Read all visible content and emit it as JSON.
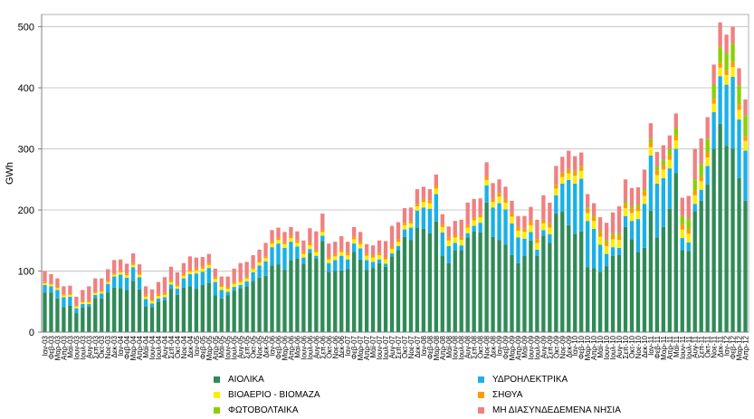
{
  "chart_data": {
    "type": "bar",
    "stacked": true,
    "title": "",
    "xlabel": "",
    "ylabel": "GWh",
    "ylim": [
      0,
      520
    ],
    "yticks": [
      0,
      100,
      200,
      300,
      400,
      500
    ],
    "categories": [
      "Ιαν-03",
      "Φεβ-03",
      "Μαρ-03",
      "Απρ-03",
      "Μαϊ-03",
      "Ιουν-03",
      "Ιουλ-03",
      "Αυγ-03",
      "Σεπ-03",
      "Οκτ-03",
      "Νοε-03",
      "Δεκ-03",
      "Ιαν-04",
      "Φεβ-04",
      "Μαρ-04",
      "Απρ-04",
      "Μαϊ-04",
      "Ιουν-04",
      "Ιουλ-04",
      "Αυγ-04",
      "Σεπ-04",
      "Οκτ-04",
      "Νοε-04",
      "Δεκ-04",
      "Ιαν-05",
      "Φεβ-05",
      "Μαρ-05",
      "Απρ-05",
      "Μαϊ-05",
      "Ιουν-05",
      "Ιουλ-05",
      "Αυγ-05",
      "Σεπ-05",
      "Οκτ-05",
      "Νοε-05",
      "Δεκ-05",
      "Ιαν-06",
      "Φεβ-06",
      "Μαρ-06",
      "Απρ-06",
      "Μαϊ-06",
      "Ιουν-06",
      "Ιουλ-06",
      "Αυγ-06",
      "Σεπ-06",
      "Οκτ-06",
      "Νοε-06",
      "Δεκ-06",
      "Ιαν-07",
      "Φεβ-07",
      "Μαρ-07",
      "Απρ-07",
      "Μαϊ-07",
      "Ιουν-07",
      "Ιουλ-07",
      "Αυγ-07",
      "Σεπ-07",
      "Οκτ-07",
      "Νοε-07",
      "Δεκ-07",
      "Ιαν-08",
      "Φεβ-08",
      "Μαρ-08",
      "Απρ-08",
      "Μαϊ-08",
      "Ιουν-08",
      "Ιουλ-08",
      "Αυγ-08",
      "Σεπ-08",
      "Οκτ-08",
      "Νοε-08",
      "Δεκ-08",
      "Ιαν-09",
      "Φεβ-09",
      "Μαρ-09",
      "Απρ-09",
      "Μαϊ-09",
      "Ιουν-09",
      "Ιουλ-09",
      "Αυγ-09",
      "Σεπ-09",
      "Οκτ-09",
      "Νοε-09",
      "Δεκ-09",
      "Ιαν-10",
      "Φεβ-10",
      "Μαρ-10",
      "Απρ-10",
      "Μαϊ-10",
      "Ιουν-10",
      "Ιουλ-10",
      "Αυγ-10",
      "Σεπ-10",
      "Οκτ-10",
      "Νοε-10",
      "Δεκ-10",
      "Ιαν-11",
      "Φεβ-11",
      "Μαρ-11",
      "Απρ-11",
      "Μαϊ-11",
      "Ιουν-11",
      "Ιουλ-11",
      "Αυγ-11",
      "Σεπ-11",
      "Οκτ-11",
      "Νοε-11",
      "Δεκ-11",
      "Ιαν-12",
      "Φεβ-12",
      "Μαρ-12",
      "Απρ-12"
    ],
    "series": [
      {
        "name": "ΑΙΟΛΙΚΑ",
        "color": "#2e8b57",
        "values": [
          65,
          65,
          55,
          41,
          43,
          31,
          40,
          42,
          56,
          55,
          65,
          73,
          72,
          69,
          84,
          70,
          42,
          41,
          50,
          52,
          71,
          61,
          73,
          75,
          71,
          77,
          80,
          60,
          55,
          60,
          68,
          72,
          75,
          84,
          89,
          92,
          109,
          111,
          102,
          118,
          120,
          112,
          130,
          120,
          149,
          99,
          100,
          101,
          103,
          131,
          119,
          102,
          105,
          113,
          107,
          124,
          134,
          156,
          151,
          171,
          169,
          162,
          181,
          125,
          113,
          134,
          134,
          155,
          165,
          163,
          212,
          156,
          151,
          143,
          126,
          113,
          125,
          150,
          125,
          158,
          146,
          194,
          197,
          175,
          161,
          165,
          106,
          105,
          99,
          108,
          125,
          126,
          172,
          152,
          131,
          138,
          199,
          155,
          172,
          202,
          260,
          134,
          133,
          198,
          215,
          242,
          300,
          341,
          305,
          300,
          252,
          215
        ]
      },
      {
        "name": "ΥΔΡΟΗΛΕΚΤΡΙΚΑ",
        "color": "#1ab0e8",
        "values": [
          12,
          10,
          14,
          16,
          15,
          8,
          6,
          4,
          5,
          8,
          14,
          18,
          22,
          20,
          22,
          20,
          12,
          6,
          5,
          5,
          7,
          10,
          15,
          20,
          25,
          22,
          25,
          22,
          14,
          6,
          6,
          5,
          8,
          14,
          20,
          24,
          30,
          34,
          36,
          30,
          20,
          10,
          6,
          5,
          9,
          14,
          18,
          24,
          16,
          14,
          18,
          16,
          10,
          6,
          5,
          5,
          7,
          12,
          20,
          28,
          35,
          40,
          45,
          38,
          28,
          12,
          8,
          7,
          9,
          16,
          28,
          48,
          60,
          58,
          52,
          42,
          28,
          14,
          10,
          9,
          14,
          30,
          46,
          74,
          82,
          86,
          76,
          64,
          44,
          20,
          14,
          12,
          18,
          30,
          54,
          72,
          90,
          88,
          80,
          66,
          40,
          20,
          14,
          12,
          18,
          30,
          60,
          78,
          100,
          118,
          96,
          82
        ]
      },
      {
        "name": "ΒΙΟΑΕΡΙΟ - ΒΙΟΜΑΖΑ",
        "color": "#ffec00",
        "values": [
          3,
          3,
          3,
          3,
          3,
          3,
          3,
          3,
          3,
          3,
          3,
          3,
          4,
          4,
          4,
          4,
          4,
          4,
          4,
          4,
          4,
          4,
          4,
          4,
          5,
          5,
          5,
          5,
          5,
          5,
          5,
          5,
          5,
          5,
          5,
          5,
          6,
          6,
          6,
          6,
          6,
          6,
          6,
          6,
          6,
          6,
          6,
          6,
          7,
          7,
          7,
          7,
          7,
          7,
          7,
          7,
          7,
          7,
          7,
          7,
          9,
          9,
          9,
          9,
          9,
          9,
          9,
          9,
          9,
          9,
          9,
          9,
          11,
          11,
          11,
          11,
          11,
          11,
          11,
          11,
          11,
          11,
          11,
          11,
          13,
          13,
          13,
          13,
          13,
          13,
          13,
          13,
          13,
          13,
          13,
          13,
          14,
          14,
          14,
          14,
          14,
          14,
          14,
          14,
          14,
          14,
          14,
          14,
          16,
          16,
          16,
          16
        ]
      },
      {
        "name": "ΣΗΘΥΑ",
        "color": "#ff9a00",
        "values": [
          2,
          2,
          2,
          2,
          2,
          2,
          2,
          2,
          2,
          2,
          2,
          2,
          3,
          3,
          3,
          3,
          3,
          3,
          3,
          3,
          3,
          3,
          3,
          3,
          3,
          3,
          3,
          3,
          3,
          3,
          3,
          3,
          3,
          3,
          3,
          3,
          4,
          4,
          4,
          4,
          4,
          4,
          4,
          4,
          4,
          4,
          4,
          4,
          4,
          4,
          4,
          4,
          4,
          4,
          4,
          4,
          4,
          4,
          4,
          4,
          5,
          5,
          5,
          5,
          5,
          5,
          5,
          5,
          5,
          5,
          5,
          5,
          6,
          6,
          6,
          6,
          6,
          6,
          6,
          6,
          6,
          6,
          6,
          6,
          7,
          7,
          7,
          7,
          7,
          7,
          7,
          7,
          7,
          7,
          7,
          7,
          8,
          8,
          8,
          8,
          8,
          8,
          8,
          8,
          8,
          8,
          8,
          8,
          8,
          8,
          8,
          8
        ]
      },
      {
        "name": "ΦΩΤΟΒΟΛΤΑΙΚΑ",
        "color": "#8ccf00",
        "values": [
          0,
          0,
          0,
          0,
          0,
          0,
          0,
          0,
          0,
          0,
          0,
          0,
          0,
          0,
          0,
          0,
          0,
          0,
          0,
          0,
          0,
          0,
          0,
          0,
          0,
          0,
          0,
          0,
          0,
          0,
          0,
          0,
          0,
          0,
          0,
          0,
          0,
          0,
          0,
          0,
          0,
          0,
          0,
          0,
          0,
          0,
          0,
          0,
          0,
          0,
          0,
          0,
          0,
          0,
          0,
          0,
          0,
          0,
          0,
          0,
          0,
          0,
          0,
          0,
          0,
          0,
          0,
          0,
          0,
          0,
          0,
          0,
          0,
          0,
          0,
          0,
          0,
          0,
          0,
          0,
          1,
          1,
          1,
          1,
          1,
          1,
          2,
          2,
          3,
          3,
          3,
          4,
          4,
          4,
          4,
          4,
          5,
          6,
          8,
          10,
          12,
          14,
          16,
          18,
          20,
          22,
          24,
          26,
          28,
          30,
          32,
          34
        ]
      },
      {
        "name": "ΜΗ ΔΙΑΣΥΝΔΕΔΕΜΕΝΑ ΝΗΣΙΑ",
        "color": "#f08080",
        "values": [
          18,
          15,
          14,
          13,
          13,
          14,
          18,
          24,
          22,
          20,
          19,
          22,
          18,
          16,
          16,
          14,
          14,
          16,
          20,
          26,
          22,
          20,
          18,
          22,
          18,
          16,
          15,
          14,
          14,
          17,
          22,
          28,
          24,
          20,
          18,
          22,
          18,
          16,
          16,
          14,
          15,
          18,
          24,
          30,
          26,
          22,
          20,
          22,
          18,
          16,
          16,
          15,
          16,
          20,
          26,
          34,
          28,
          24,
          22,
          24,
          20,
          18,
          18,
          16,
          18,
          22,
          28,
          36,
          30,
          26,
          24,
          26,
          22,
          20,
          20,
          18,
          20,
          24,
          32,
          40,
          34,
          30,
          26,
          30,
          24,
          22,
          22,
          20,
          22,
          28,
          34,
          44,
          36,
          30,
          28,
          32,
          26,
          24,
          24,
          22,
          24,
          30,
          38,
          50,
          42,
          36,
          32,
          40,
          30,
          28,
          28,
          26
        ]
      }
    ]
  },
  "legend": {
    "items": [
      {
        "label": "ΑΙΟΛΙΚΑ",
        "color": "#2e8b57"
      },
      {
        "label": "ΥΔΡΟΗΛΕΚΤΡΙΚΑ",
        "color": "#1ab0e8"
      },
      {
        "label": "ΒΙΟΑΕΡΙΟ - ΒΙΟΜΑΖΑ",
        "color": "#ffec00"
      },
      {
        "label": "ΣΗΘΥΑ",
        "color": "#ff9a00"
      },
      {
        "label": "ΦΩΤΟΒΟΛΤΑΙΚΑ",
        "color": "#8ccf00"
      },
      {
        "label": "ΜΗ ΔΙΑΣΥΝΔΕΔΕΜΕΝΑ ΝΗΣΙΑ",
        "color": "#f08080"
      }
    ]
  }
}
